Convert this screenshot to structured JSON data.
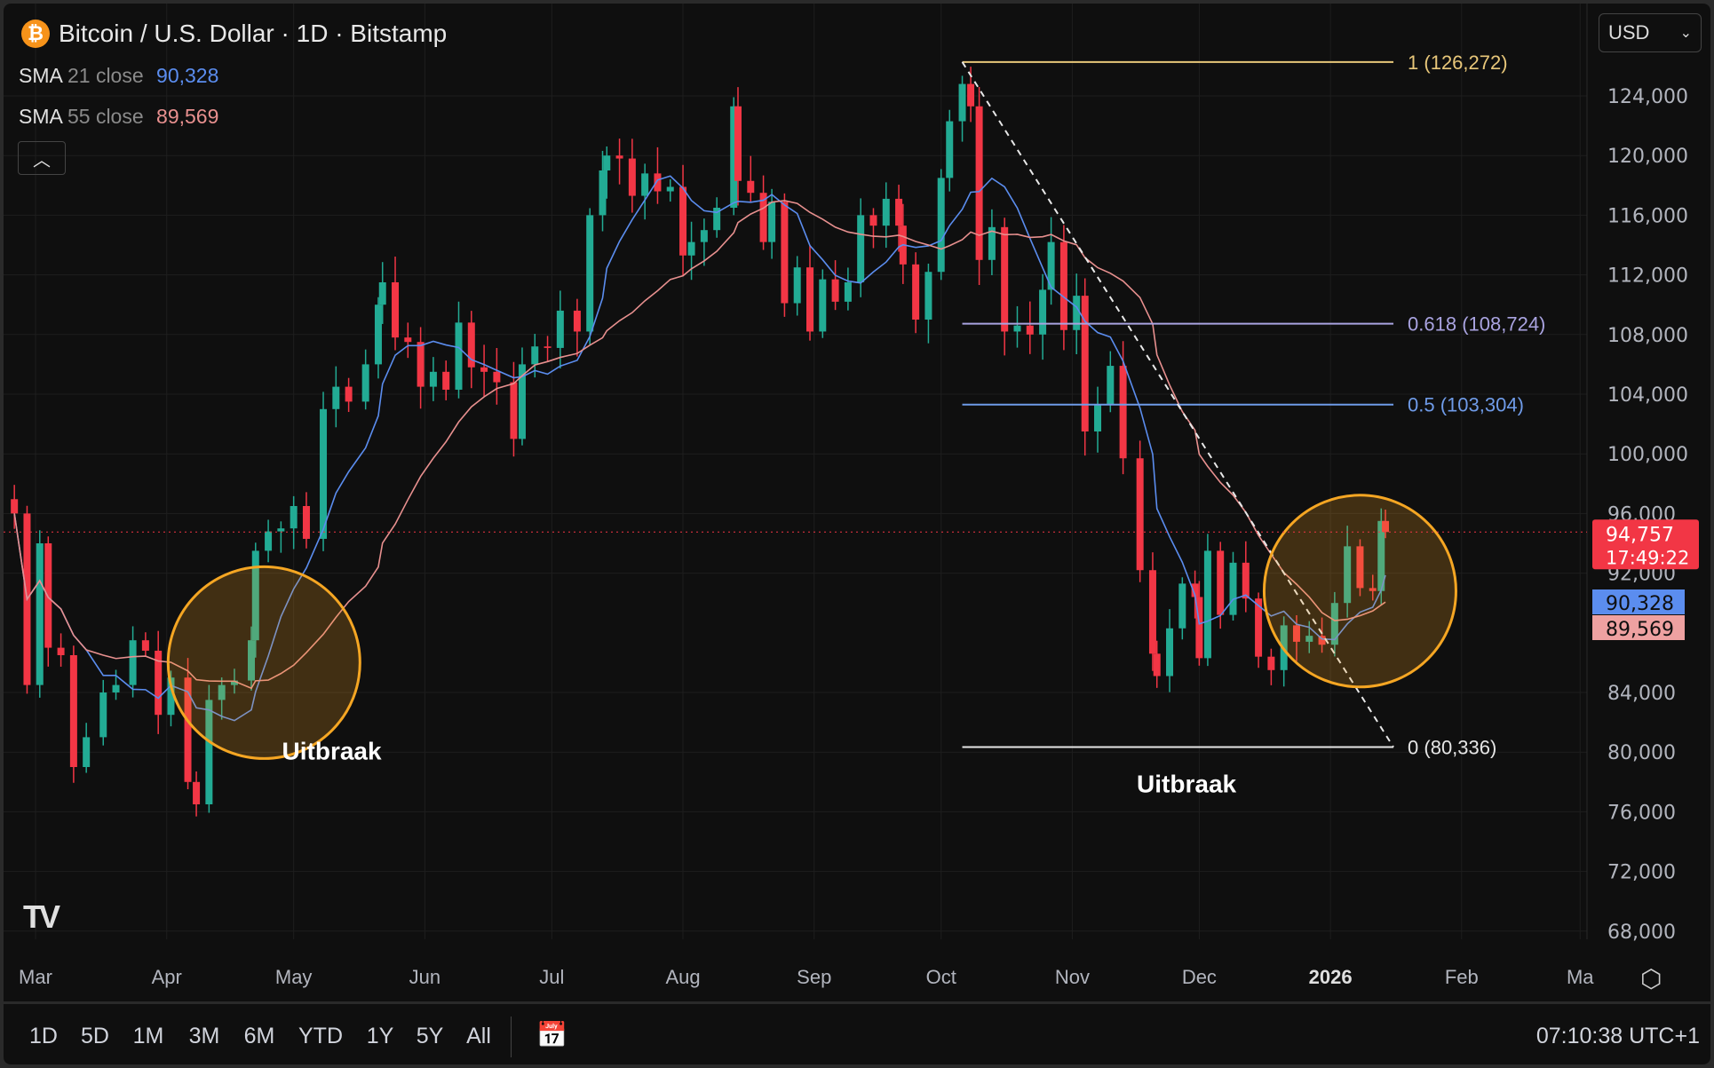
{
  "header": {
    "title": "Bitcoin / U.S. Dollar · 1D · Bitstamp",
    "icon": "bitcoin-icon",
    "sma21": {
      "key": "SMA",
      "params": "21 close",
      "value": "90,328",
      "color": "#5b8def"
    },
    "sma55": {
      "key": "SMA",
      "params": "55 close",
      "value": "89,569",
      "color": "#e8908f"
    },
    "collapse_icon": "chevron-up-icon"
  },
  "currency": {
    "label": "USD",
    "icon": "chevron-down-icon"
  },
  "bottom_bar": {
    "ranges": [
      "1D",
      "5D",
      "1M",
      "3M",
      "6M",
      "YTD",
      "1Y",
      "5Y",
      "All"
    ],
    "goto_icon": "calendar-goto-icon",
    "clock": "07:10:38 UTC+1"
  },
  "logo": "TV",
  "chart_data": {
    "type": "candlestick",
    "title": "Bitcoin / U.S. Dollar · 1D · Bitstamp",
    "ylim": [
      66000,
      128000
    ],
    "y_ticks": [
      "124,000",
      "120,000",
      "116,000",
      "112,000",
      "108,000",
      "104,000",
      "100,000",
      "96,000",
      "92,000",
      "84,000",
      "80,000",
      "76,000",
      "72,000",
      "68,000"
    ],
    "y_tick_values": [
      124000,
      120000,
      116000,
      112000,
      108000,
      104000,
      100000,
      96000,
      92000,
      84000,
      80000,
      76000,
      72000,
      68000
    ],
    "x_ticks": [
      {
        "label": "Mar",
        "date": "2025-03-01"
      },
      {
        "label": "Apr",
        "date": "2025-04-01"
      },
      {
        "label": "May",
        "date": "2025-05-01"
      },
      {
        "label": "Jun",
        "date": "2025-06-01"
      },
      {
        "label": "Jul",
        "date": "2025-07-01"
      },
      {
        "label": "Aug",
        "date": "2025-08-01"
      },
      {
        "label": "Sep",
        "date": "2025-09-01"
      },
      {
        "label": "Oct",
        "date": "2025-10-01"
      },
      {
        "label": "Nov",
        "date": "2025-11-01"
      },
      {
        "label": "Dec",
        "date": "2025-12-01"
      },
      {
        "label": "2026",
        "date": "2026-01-01"
      },
      {
        "label": "Feb",
        "date": "2026-02-01"
      },
      {
        "label": "Ma",
        "date": "2026-03-01"
      }
    ],
    "grid": true,
    "colors": {
      "up": "#22ab94",
      "down": "#f23645",
      "sma21": "#5b8def",
      "sma55": "#e8908f",
      "highlight": "#f5a623"
    },
    "closes": [
      [
        "2025-02-24",
        96000
      ],
      [
        "2025-02-27",
        84500
      ],
      [
        "2025-03-02",
        94000
      ],
      [
        "2025-03-04",
        87000
      ],
      [
        "2025-03-07",
        86500
      ],
      [
        "2025-03-10",
        79000
      ],
      [
        "2025-03-13",
        81000
      ],
      [
        "2025-03-17",
        84000
      ],
      [
        "2025-03-20",
        84500
      ],
      [
        "2025-03-24",
        87500
      ],
      [
        "2025-03-27",
        86800
      ],
      [
        "2025-03-30",
        82500
      ],
      [
        "2025-04-02",
        85000
      ],
      [
        "2025-04-06",
        78000
      ],
      [
        "2025-04-08",
        76500
      ],
      [
        "2025-04-11",
        83500
      ],
      [
        "2025-04-14",
        84500
      ],
      [
        "2025-04-17",
        84800
      ],
      [
        "2025-04-21",
        87500
      ],
      [
        "2025-04-22",
        93500
      ],
      [
        "2025-04-25",
        94800
      ],
      [
        "2025-04-28",
        95000
      ],
      [
        "2025-05-01",
        96500
      ],
      [
        "2025-05-04",
        94300
      ],
      [
        "2025-05-08",
        103000
      ],
      [
        "2025-05-11",
        104500
      ],
      [
        "2025-05-14",
        103500
      ],
      [
        "2025-05-18",
        106000
      ],
      [
        "2025-05-21",
        110000
      ],
      [
        "2025-05-22",
        111500
      ],
      [
        "2025-05-25",
        107800
      ],
      [
        "2025-05-28",
        107500
      ],
      [
        "2025-05-31",
        104500
      ],
      [
        "2025-06-03",
        105500
      ],
      [
        "2025-06-06",
        104300
      ],
      [
        "2025-06-09",
        108800
      ],
      [
        "2025-06-12",
        105800
      ],
      [
        "2025-06-15",
        105500
      ],
      [
        "2025-06-18",
        104800
      ],
      [
        "2025-06-22",
        101000
      ],
      [
        "2025-06-24",
        106000
      ],
      [
        "2025-06-27",
        107200
      ],
      [
        "2025-06-30",
        107100
      ],
      [
        "2025-07-03",
        109600
      ],
      [
        "2025-07-07",
        108200
      ],
      [
        "2025-07-10",
        116000
      ],
      [
        "2025-07-13",
        119000
      ],
      [
        "2025-07-14",
        120000
      ],
      [
        "2025-07-17",
        119800
      ],
      [
        "2025-07-20",
        117300
      ],
      [
        "2025-07-23",
        118800
      ],
      [
        "2025-07-26",
        117600
      ],
      [
        "2025-07-29",
        117900
      ],
      [
        "2025-08-01",
        113300
      ],
      [
        "2025-08-03",
        114200
      ],
      [
        "2025-08-06",
        115000
      ],
      [
        "2025-08-09",
        116500
      ],
      [
        "2025-08-13",
        123300
      ],
      [
        "2025-08-14",
        118300
      ],
      [
        "2025-08-17",
        117500
      ],
      [
        "2025-08-20",
        114200
      ],
      [
        "2025-08-22",
        116900
      ],
      [
        "2025-08-25",
        110100
      ],
      [
        "2025-08-28",
        112500
      ],
      [
        "2025-08-31",
        108200
      ],
      [
        "2025-09-03",
        111700
      ],
      [
        "2025-09-06",
        110200
      ],
      [
        "2025-09-09",
        111500
      ],
      [
        "2025-09-12",
        116000
      ],
      [
        "2025-09-15",
        115300
      ],
      [
        "2025-09-18",
        117100
      ],
      [
        "2025-09-21",
        115300
      ],
      [
        "2025-09-22",
        112700
      ],
      [
        "2025-09-25",
        109000
      ],
      [
        "2025-09-28",
        112200
      ],
      [
        "2025-10-01",
        118500
      ],
      [
        "2025-10-03",
        122300
      ],
      [
        "2025-10-06",
        124800
      ],
      [
        "2025-10-08",
        123300
      ],
      [
        "2025-10-10",
        113000
      ],
      [
        "2025-10-13",
        115200
      ],
      [
        "2025-10-16",
        108200
      ],
      [
        "2025-10-19",
        108600
      ],
      [
        "2025-10-22",
        108000
      ],
      [
        "2025-10-25",
        111000
      ],
      [
        "2025-10-27",
        114200
      ],
      [
        "2025-10-30",
        108300
      ],
      [
        "2025-11-02",
        110600
      ],
      [
        "2025-11-04",
        101500
      ],
      [
        "2025-11-07",
        103300
      ],
      [
        "2025-11-10",
        105900
      ],
      [
        "2025-11-13",
        99700
      ],
      [
        "2025-11-17",
        92200
      ],
      [
        "2025-11-20",
        86600
      ],
      [
        "2025-11-21",
        85100
      ],
      [
        "2025-11-24",
        88300
      ],
      [
        "2025-11-27",
        91300
      ],
      [
        "2025-11-30",
        90400
      ],
      [
        "2025-12-01",
        86300
      ],
      [
        "2025-12-03",
        93500
      ],
      [
        "2025-12-06",
        89200
      ],
      [
        "2025-12-09",
        92700
      ],
      [
        "2025-12-12",
        90300
      ],
      [
        "2025-12-15",
        86400
      ],
      [
        "2025-12-18",
        85500
      ],
      [
        "2025-12-21",
        88500
      ],
      [
        "2025-12-24",
        87400
      ],
      [
        "2025-12-27",
        87800
      ],
      [
        "2025-12-30",
        87200
      ],
      [
        "2026-01-02",
        90000
      ],
      [
        "2026-01-05",
        93800
      ],
      [
        "2026-01-08",
        91000
      ],
      [
        "2026-01-11",
        90800
      ],
      [
        "2026-01-13",
        95500
      ],
      [
        "2026-01-14",
        94757
      ]
    ],
    "last_price": {
      "value": 94757,
      "label": "94,757",
      "countdown": "17:49:22",
      "color": "#f23645"
    },
    "sma21_label": {
      "value": 90328,
      "label": "90,328"
    },
    "sma55_label": {
      "value": 89569,
      "label": "89,569"
    },
    "fibonacci": {
      "start_date": "2025-10-06",
      "end_date": "2026-01-14",
      "levels": [
        {
          "ratio": "1",
          "price": 126272,
          "label": "1 (126,272)",
          "color": "#e8c77a"
        },
        {
          "ratio": "0.618",
          "price": 108724,
          "label": "0.618 (108,724)",
          "color": "#a9a3e0"
        },
        {
          "ratio": "0.5",
          "price": 103304,
          "label": "0.5 (103,304)",
          "color": "#6f9be8"
        },
        {
          "ratio": "0",
          "price": 80336,
          "label": "0 (80,336)",
          "color": "#e6e6e6"
        }
      ]
    },
    "trendline": {
      "from": [
        "2025-10-06",
        126272
      ],
      "to": [
        "2026-01-14",
        80336
      ],
      "style": "dashed"
    },
    "annotations": [
      {
        "text": "Uitbraak",
        "date": "2025-04-24",
        "price": 86000,
        "label_date": "2025-05-10",
        "label_price": 79500
      },
      {
        "text": "Uitbraak",
        "date": "2026-01-08",
        "price": 90800,
        "label_date": "2025-11-28",
        "label_price": 77300
      }
    ]
  }
}
